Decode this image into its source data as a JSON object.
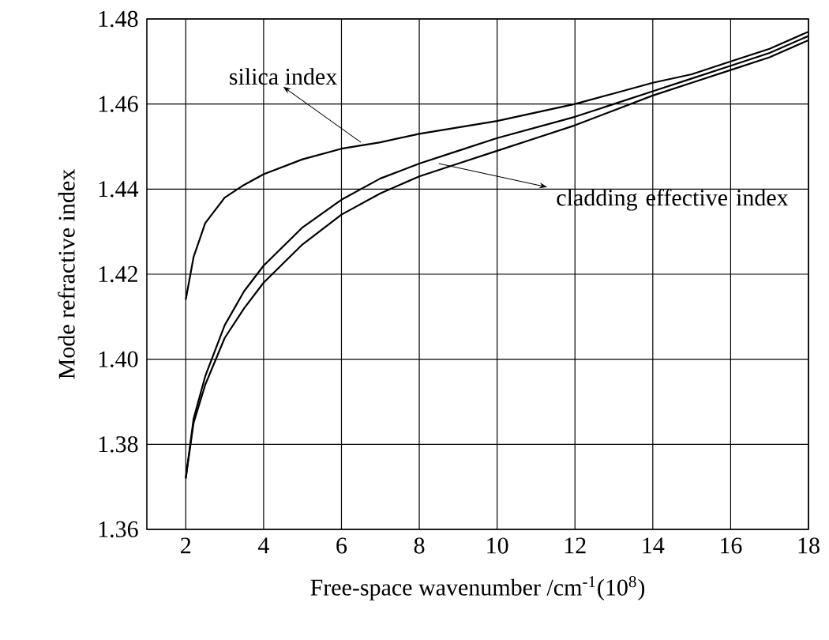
{
  "chart_data": {
    "type": "line",
    "xlabel": "Free-space wavenumber /cm$^{-1}$(10$^{8}$)",
    "ylabel": "Mode refractive index",
    "series": [
      {
        "color": "#000000",
        "x": [
          2,
          2.2,
          2.5,
          3,
          3.5,
          4,
          5,
          6,
          7,
          8,
          9,
          10,
          11,
          12,
          13,
          14,
          15,
          16,
          17,
          18
        ],
        "values": [
          1.414,
          1.424,
          1.432,
          1.438,
          1.441,
          1.4435,
          1.447,
          1.4495,
          1.451,
          1.453,
          1.4545,
          1.456,
          1.458,
          1.46,
          1.4625,
          1.465,
          1.467,
          1.47,
          1.473,
          1.477
        ]
      },
      {
        "color": "#000000",
        "x": [
          2,
          2.2,
          2.5,
          3,
          3.5,
          4,
          5,
          6,
          7,
          8,
          9,
          10,
          11,
          12,
          13,
          14,
          15,
          16,
          17,
          18
        ],
        "values": [
          1.372,
          1.386,
          1.396,
          1.408,
          1.416,
          1.422,
          1.431,
          1.4375,
          1.4425,
          1.446,
          1.449,
          1.452,
          1.4545,
          1.457,
          1.46,
          1.463,
          1.466,
          1.469,
          1.472,
          1.476
        ]
      },
      {
        "color": "#000000",
        "x": [
          2,
          2.2,
          2.5,
          3,
          3.5,
          4,
          5,
          6,
          7,
          8,
          9,
          10,
          11,
          12,
          13,
          14,
          15,
          16,
          17,
          18
        ],
        "values": [
          1.372,
          1.385,
          1.394,
          1.405,
          1.412,
          1.418,
          1.427,
          1.434,
          1.439,
          1.443,
          1.446,
          1.449,
          1.452,
          1.455,
          1.4585,
          1.462,
          1.465,
          1.468,
          1.471,
          1.475
        ]
      }
    ],
    "annotations": [
      {
        "text": "silica index",
        "x": 6.5,
        "y": 1.451
      },
      {
        "text": "cladding effective index",
        "x": 8.5,
        "y": 1.446
      }
    ],
    "xlim": [
      1,
      18
    ],
    "xticks": [
      2,
      4,
      6,
      8,
      10,
      12,
      14,
      16,
      18
    ],
    "ylim": [
      1.36,
      1.48
    ],
    "yticks": [
      1.36,
      1.38,
      {
        "value": 1.4,
        "label": "1.40"
      },
      1.42,
      1.44,
      1.46,
      1.48
    ],
    "grid": true,
    "marker": "none",
    "line_style": "solid"
  }
}
